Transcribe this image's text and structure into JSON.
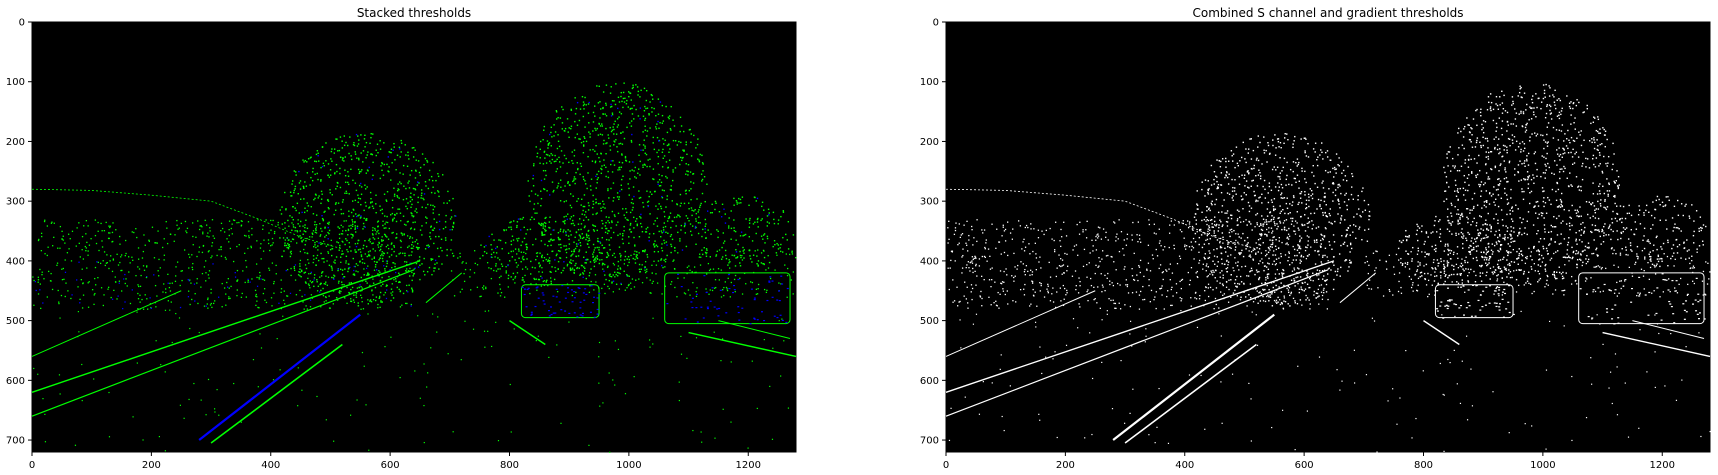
{
  "panels": [
    {
      "title": "Stacked thresholds",
      "render": "color",
      "x_ticks": [
        "0",
        "200",
        "400",
        "600",
        "800",
        "1000",
        "1200"
      ],
      "y_ticks": [
        "0",
        "100",
        "200",
        "300",
        "400",
        "500",
        "600",
        "700"
      ],
      "colors": {
        "primary": "#00ff00",
        "secondary": "#0000ff"
      }
    },
    {
      "title": "Combined S channel and gradient thresholds",
      "render": "mono",
      "x_ticks": [
        "0",
        "200",
        "400",
        "600",
        "800",
        "1000",
        "1200"
      ],
      "y_ticks": [
        "0",
        "100",
        "200",
        "300",
        "400",
        "500",
        "600",
        "700"
      ],
      "colors": {
        "primary": "#ffffff",
        "secondary": "#ffffff"
      }
    }
  ],
  "image": {
    "width": 1280,
    "height": 720
  }
}
